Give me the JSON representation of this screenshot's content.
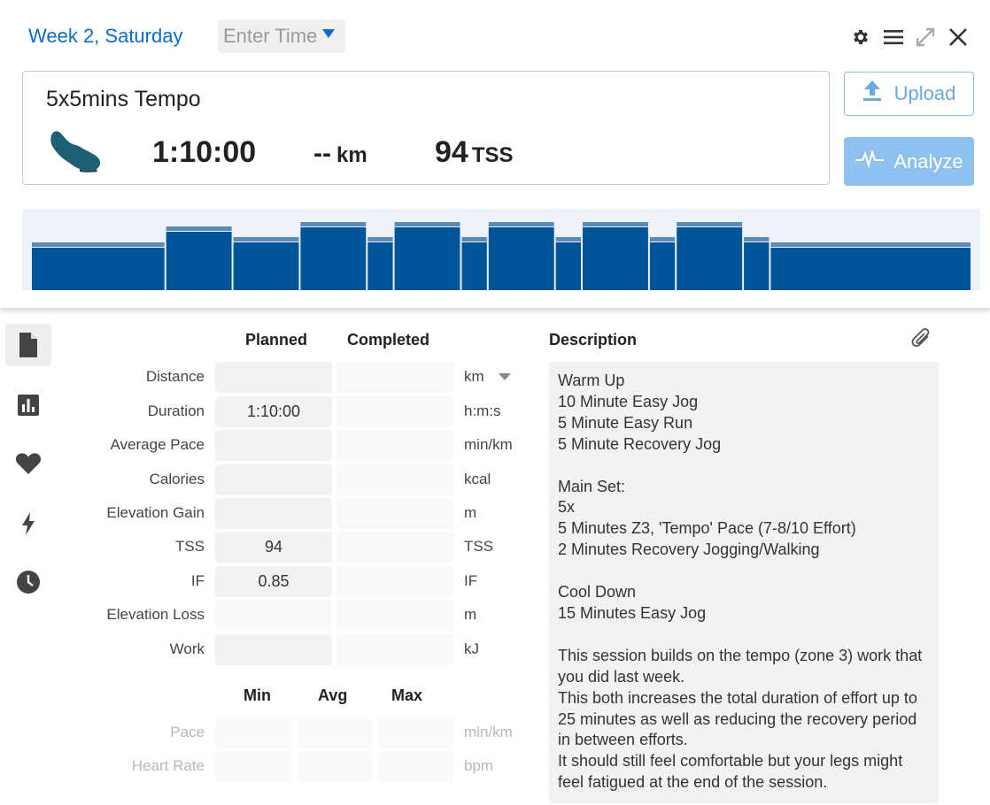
{
  "header": {
    "title": "Week 2, Saturday",
    "time_placeholder": "Enter Time"
  },
  "summary": {
    "workout_name": "5x5mins Tempo",
    "sport_icon": "running-shoe-icon",
    "duration": "1:10:00",
    "distance": "--",
    "distance_unit": "km",
    "tss": "94",
    "tss_unit": "TSS"
  },
  "actions": {
    "upload_label": "Upload",
    "analyze_label": "Analyze"
  },
  "workout_structure": {
    "segments_minutes": [
      10,
      5,
      5,
      5,
      2,
      5,
      2,
      5,
      2,
      5,
      2,
      5,
      2,
      15
    ],
    "intensity_levels": [
      "easy",
      "steady",
      "recovery",
      "tempo",
      "recovery",
      "tempo",
      "recovery",
      "tempo",
      "recovery",
      "tempo",
      "recovery",
      "tempo",
      "recovery",
      "easy"
    ]
  },
  "table": {
    "planned_header": "Planned",
    "completed_header": "Completed",
    "rows": [
      {
        "label": "Distance",
        "planned": "",
        "completed": "",
        "unit": "km"
      },
      {
        "label": "Duration",
        "planned": "1:10:00",
        "completed": "",
        "unit": "h:m:s"
      },
      {
        "label": "Average Pace",
        "planned": "",
        "completed": "",
        "unit": "min/km"
      },
      {
        "label": "Calories",
        "planned": "",
        "completed": "",
        "unit": "kcal"
      },
      {
        "label": "Elevation Gain",
        "planned": "",
        "completed": "",
        "unit": "m"
      },
      {
        "label": "TSS",
        "planned": "94",
        "completed": "",
        "unit": "TSS"
      },
      {
        "label": "IF",
        "planned": "0.85",
        "completed": "",
        "unit": "IF"
      },
      {
        "label": "Elevation Loss",
        "planned": "",
        "completed": "",
        "unit": "m"
      },
      {
        "label": "Work",
        "planned": "",
        "completed": "",
        "unit": "kJ"
      }
    ],
    "min_header": "Min",
    "avg_header": "Avg",
    "max_header": "Max",
    "range_rows": [
      {
        "label": "Pace",
        "unit": "min/km"
      },
      {
        "label": "Heart Rate",
        "unit": "bpm"
      }
    ]
  },
  "description": {
    "heading": "Description",
    "text": "Warm Up\n10 Minute Easy Jog\n5 Minute Easy Run\n5 Minute Recovery Jog\n\nMain Set:\n5x\n5 Minutes Z3, 'Tempo' Pace (7-8/10 Effort)\n2 Minutes Recovery Jogging/Walking\n\nCool Down\n15 Minutes Easy Jog\n\nThis session builds on the tempo (zone 3) work that you did last week.\nThis both increases the total duration of effort up to 25 minutes as well as reducing the recovery period in between efforts.\nIt should still feel comfortable but your legs might feel fatigued at the end of the session."
  },
  "colors": {
    "accent_blue": "#0b6cc8",
    "chart_blue": "#00549a",
    "analyze_bg": "#8fc1ee"
  }
}
